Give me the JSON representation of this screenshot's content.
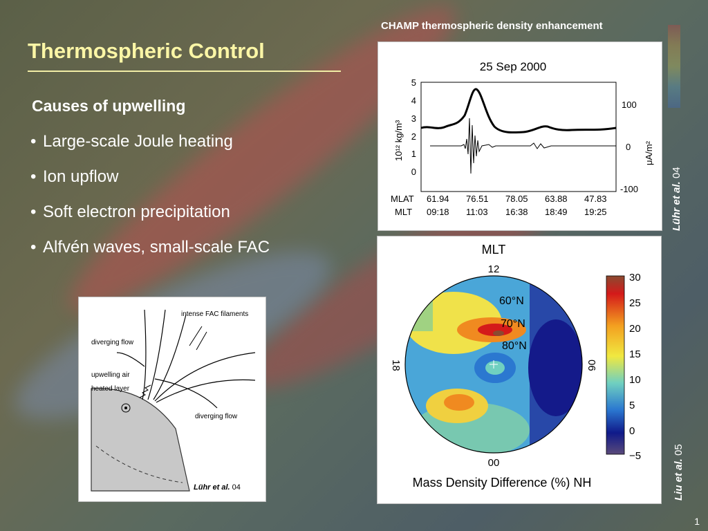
{
  "slide": {
    "title": "Thermospheric Control",
    "subheading": "Causes of upwelling",
    "bullets": [
      "Large-scale Joule heating",
      "Ion upflow",
      "Soft electron precipitation",
      "Alfvén waves, small-scale FAC"
    ],
    "bullet_char": "•",
    "page_number": "1"
  },
  "top_figure": {
    "caption": "CHAMP thermospheric density enhancement",
    "date_title": "25 Sep 2000",
    "left_axis_ticks": [
      "5",
      "4",
      "3",
      "2",
      "1",
      "0"
    ],
    "left_axis_label": "10¹² kg/m³",
    "right_axis_ticks": [
      "100",
      "0",
      "-100"
    ],
    "right_axis_label": "μA/m²",
    "mlat_label": "MLAT",
    "mlt_label": "MLT",
    "mlat_values": [
      "61.94",
      "76.51",
      "78.05",
      "63.88",
      "47.83"
    ],
    "mlt_values": [
      "09:18",
      "11:03",
      "16:38",
      "18:49",
      "19:25"
    ],
    "citation_author": "Lühr et al.",
    "citation_year": "04"
  },
  "schematic": {
    "labels": {
      "fac": "intense FAC filaments",
      "diverging_left": "diverging flow",
      "upwelling": "upwelling air",
      "heated": "heated layer",
      "diverging_right": "diverging flow"
    },
    "citation_author": "Lühr et al.",
    "citation_year": "04"
  },
  "polar_figure": {
    "title": "MLT",
    "top_label": "12",
    "bottom_label": "00",
    "left_label": "18",
    "right_label": "06",
    "lat_labels": [
      "60°N",
      "70°N",
      "80°N"
    ],
    "colorbar_ticks": [
      "30",
      "25",
      "20",
      "15",
      "10",
      "5",
      "0",
      "−5"
    ],
    "xlabel": "Mass Density Difference (%) NH",
    "citation_author": "Liu et al.",
    "citation_year": "05"
  }
}
